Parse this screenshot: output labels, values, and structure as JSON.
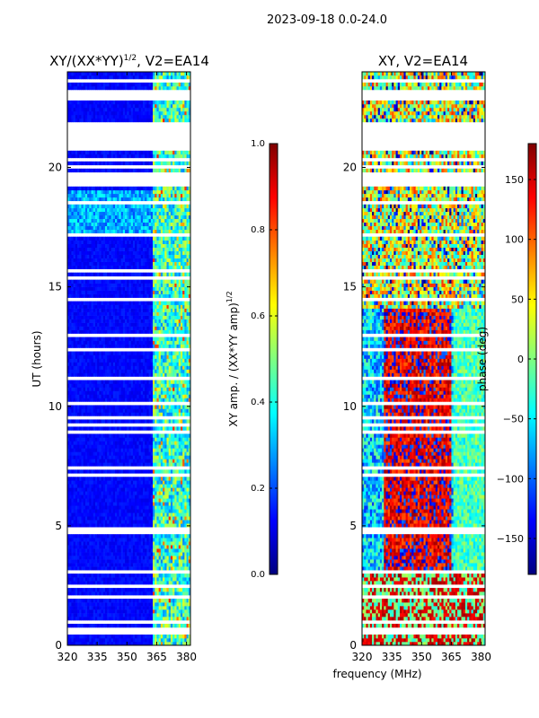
{
  "figure_title": "2023-09-18 0.0-24.0",
  "shared_xlabel": "frequency (MHz)",
  "chart_data": [
    {
      "type": "heatmap",
      "title": "XY/(XX*YY)",
      "title_superscript": "1/2",
      "title_suffix": ", V2=EA14",
      "xlabel": "",
      "ylabel": "UT (hours)",
      "xlim": [
        320,
        382
      ],
      "ylim": [
        0,
        24
      ],
      "xticks": [
        320,
        335,
        350,
        365,
        380
      ],
      "yticks": [
        0,
        5,
        10,
        15,
        20
      ],
      "colorbar": {
        "label": "XY amp. / (XX*YY amp)",
        "label_superscript": "1/2",
        "range": [
          0.0,
          1.0
        ],
        "ticks": [
          "0.0",
          "0.2",
          "0.4",
          "0.6",
          "0.8",
          "1.0"
        ],
        "colormap": "jet"
      },
      "description_values": {
        "bright_channel_band_mhz": [
          363,
          382
        ],
        "background_level": 0.1
      }
    },
    {
      "type": "heatmap",
      "title": "XY, V2=EA14",
      "xlabel": "",
      "ylabel": "",
      "xlim": [
        320,
        382
      ],
      "ylim": [
        0,
        24
      ],
      "xticks": [
        320,
        335,
        350,
        365,
        380
      ],
      "yticks": [
        0,
        5,
        10,
        15,
        20
      ],
      "colorbar": {
        "label": "phase (deg)",
        "range": [
          -180,
          180
        ],
        "ticks": [
          "−150",
          "−100",
          "−50",
          "0",
          "50",
          "100",
          "150"
        ],
        "colormap": "jet"
      }
    }
  ]
}
